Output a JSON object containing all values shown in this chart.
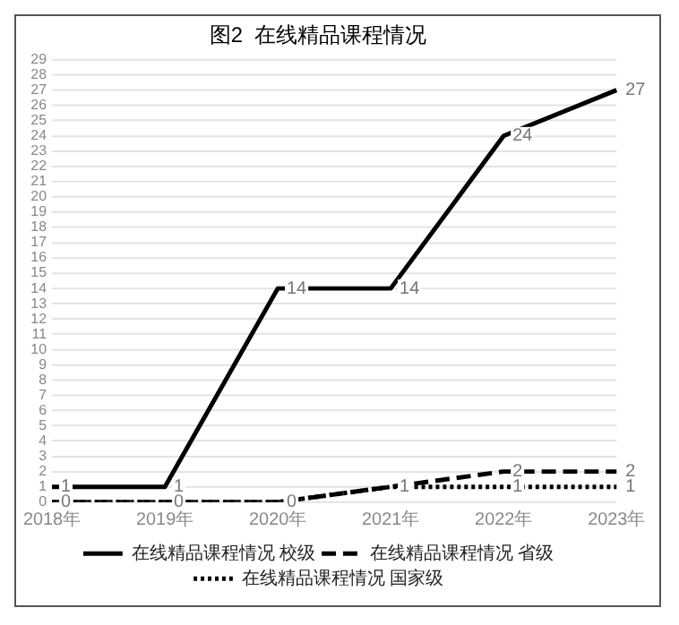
{
  "chart_data": {
    "type": "line",
    "title": "图2  在线精品课程情况",
    "categories": [
      "2018年",
      "2019年",
      "2020年",
      "2021年",
      "2022年",
      "2023年"
    ],
    "series": [
      {
        "name": "在线精品课程情况 校级",
        "color": "#000000",
        "line_style": "solid",
        "values": [
          1,
          1,
          14,
          14,
          24,
          27
        ],
        "value_labels": [
          "1",
          "1",
          "14",
          "14",
          "24",
          "27"
        ]
      },
      {
        "name": "在线精品课程情况 省级",
        "color": "#000000",
        "line_style": "dashed",
        "values": [
          0,
          0,
          0,
          1,
          2,
          2
        ],
        "value_labels": [
          "0",
          "0",
          "0",
          null,
          "2",
          "2"
        ]
      },
      {
        "name": "在线精品课程情况 国家级",
        "color": "#000000",
        "line_style": "dotted",
        "values": [
          0,
          0,
          0,
          1,
          1,
          1
        ],
        "value_labels": [
          null,
          null,
          null,
          "1",
          "1",
          "1"
        ]
      }
    ],
    "ylim": [
      0,
      29
    ],
    "yticks": [
      0,
      1,
      2,
      3,
      4,
      5,
      6,
      7,
      8,
      9,
      10,
      11,
      12,
      13,
      14,
      15,
      16,
      17,
      18,
      19,
      20,
      21,
      22,
      23,
      24,
      25,
      26,
      27,
      28,
      29
    ],
    "grid": "y",
    "legend": "bottom",
    "marker": "none"
  }
}
